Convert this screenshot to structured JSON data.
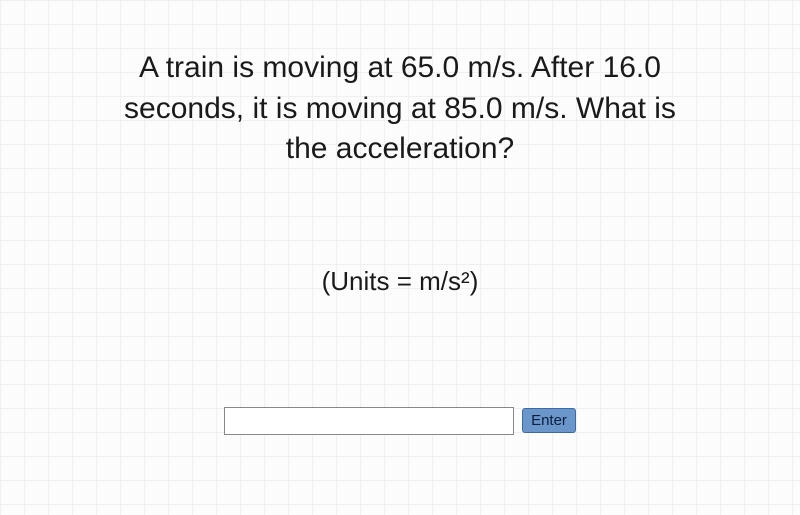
{
  "question": {
    "text": "A train is moving at 65.0 m/s. After 16.0 seconds, it is moving at 85.0 m/s. What is the acceleration?",
    "fontsize": 30,
    "color": "#1a1a1a"
  },
  "units": {
    "text": "(Units = m/s²)",
    "fontsize": 26,
    "color": "#1a1a1a"
  },
  "answer": {
    "value": "",
    "placeholder": ""
  },
  "buttons": {
    "enter_label": "Enter"
  },
  "styling": {
    "background_color": "#fcfcfc",
    "grid_color": "#f0f0f0",
    "grid_size": 24,
    "input_width": 290,
    "input_border_color": "#888888",
    "button_bg_color": "#6a96c9",
    "button_border_color": "#3a6aa8",
    "button_text_color": "#0a2040",
    "font_family": "Arial"
  }
}
